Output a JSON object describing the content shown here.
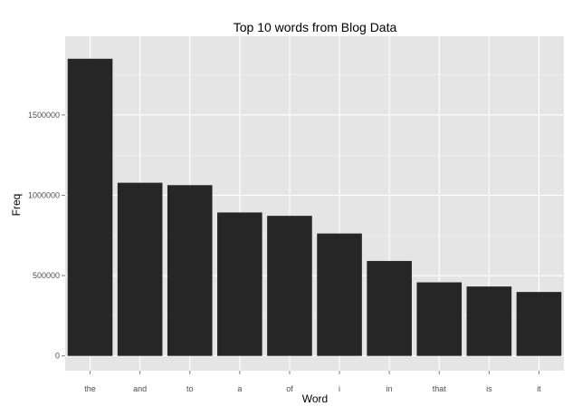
{
  "chart_data": {
    "type": "bar",
    "title": "Top 10 words from Blog Data",
    "xlabel": "Word",
    "ylabel": "Freq",
    "categories": [
      "the",
      "and",
      "to",
      "a",
      "of",
      "i",
      "in",
      "that",
      "is",
      "it"
    ],
    "values": [
      1850000,
      1078000,
      1063000,
      893000,
      872000,
      762000,
      591000,
      458000,
      432000,
      398000
    ],
    "ylim": [
      0,
      2000000
    ],
    "yticks": [
      0,
      500000,
      1000000,
      1500000
    ],
    "ytick_labels": [
      "0",
      "500000",
      "1000000",
      "1500000"
    ],
    "grid": true,
    "legend": "none",
    "colors": {
      "bar": "#262626",
      "panel": "#e5e5e5",
      "grid_major": "#ffffff",
      "grid_minor": "#f2f2f2",
      "tick_label": "#4d4d4d"
    }
  }
}
